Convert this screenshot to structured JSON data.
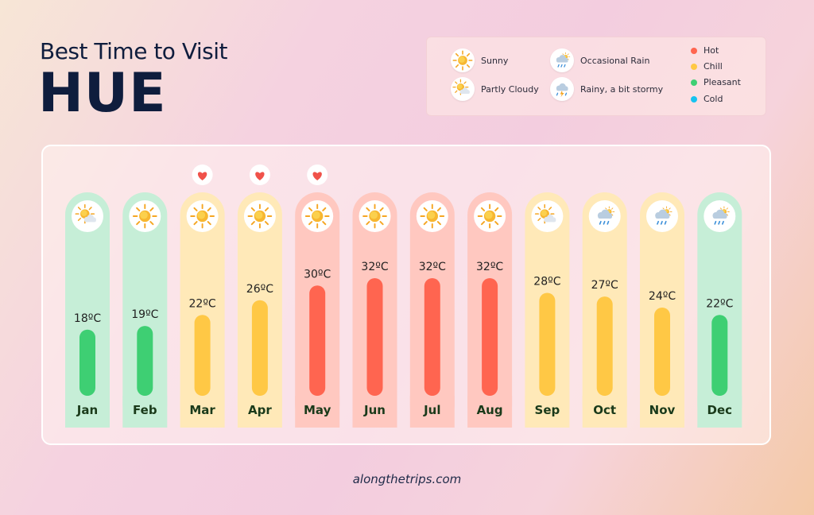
{
  "header": {
    "subtitle": "Best Time to Visit",
    "city": "HUE"
  },
  "legend": {
    "weather": [
      {
        "label": "Sunny",
        "icon": "sun-icon"
      },
      {
        "label": "Occasional Rain",
        "icon": "rain-cloud-icon"
      },
      {
        "label": "Partly Cloudy",
        "icon": "partly-cloudy-icon"
      },
      {
        "label": "Rainy, a bit stormy",
        "icon": "storm-cloud-icon"
      }
    ],
    "temperature": [
      {
        "label": "Hot",
        "color": "#ff6550"
      },
      {
        "label": "Chill",
        "color": "#ffc845"
      },
      {
        "label": "Pleasant",
        "color": "#3ecf73"
      },
      {
        "label": "Cold",
        "color": "#17c3f0"
      }
    ]
  },
  "chart_data": {
    "type": "bar",
    "categories": [
      "Jan",
      "Feb",
      "Mar",
      "Apr",
      "May",
      "Jun",
      "Jul",
      "Aug",
      "Sep",
      "Oct",
      "Nov",
      "Dec"
    ],
    "values": [
      18,
      19,
      22,
      26,
      30,
      32,
      32,
      32,
      28,
      27,
      24,
      22
    ],
    "value_labels": [
      "18ºC",
      "19ºC",
      "22ºC",
      "26ºC",
      "30ºC",
      "32ºC",
      "32ºC",
      "32ºC",
      "28ºC",
      "27ºC",
      "24ºC",
      "22ºC"
    ],
    "unit": "ºC",
    "category_class": [
      "Pleasant",
      "Pleasant",
      "Chill",
      "Chill",
      "Hot",
      "Hot",
      "Hot",
      "Hot",
      "Chill",
      "Chill",
      "Chill",
      "Pleasant"
    ],
    "weather": [
      "partly-cloudy",
      "sunny",
      "sunny",
      "sunny",
      "sunny",
      "sunny",
      "sunny",
      "sunny",
      "partly-cloudy",
      "occasional-rain",
      "occasional-rain",
      "occasional-rain"
    ],
    "favorite": [
      false,
      false,
      true,
      true,
      true,
      false,
      false,
      false,
      false,
      false,
      false,
      false
    ],
    "colors": {
      "Hot": {
        "bar": "#ff6550",
        "column": "#ffc8c0"
      },
      "Chill": {
        "bar": "#ffc845",
        "column": "#ffe9b8"
      },
      "Pleasant": {
        "bar": "#3ecf73",
        "column": "#c6eed7"
      }
    }
  },
  "footer": {
    "site": "alongthetrips.com"
  }
}
